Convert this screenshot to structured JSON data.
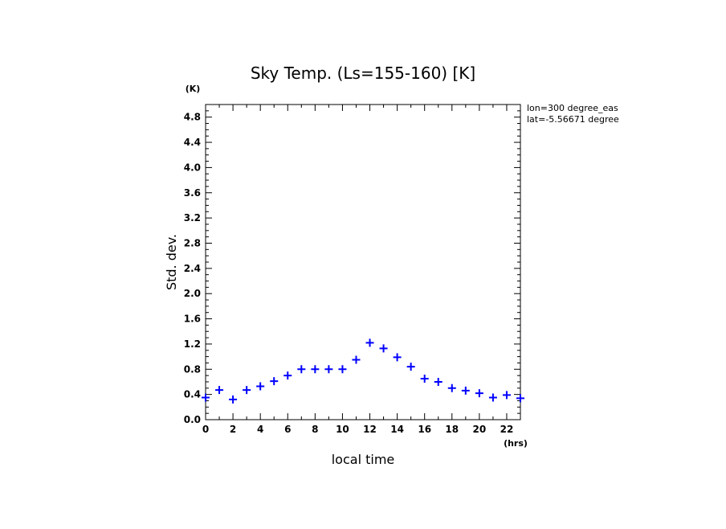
{
  "chart_data": {
    "type": "scatter",
    "title": "Sky Temp. (Ls=155-160) [K]",
    "xlabel": "local time",
    "ylabel": "Std. dev.",
    "x_unit": "(hrs)",
    "y_unit": "(K)",
    "xlim": [
      0,
      23
    ],
    "ylim": [
      0.0,
      5.0
    ],
    "x_ticks": [
      0,
      2,
      4,
      6,
      8,
      10,
      12,
      14,
      16,
      18,
      20,
      22
    ],
    "y_ticks": [
      0.0,
      0.4,
      0.8,
      1.2,
      1.6,
      2.0,
      2.4,
      2.8,
      3.2,
      3.6,
      4.0,
      4.4,
      4.8
    ],
    "y_tick_labels": [
      "0.0",
      "0.4",
      "0.8",
      "1.2",
      "1.6",
      "2.0",
      "2.4",
      "2.8",
      "3.2",
      "3.6",
      "4.0",
      "4.4",
      "4.8"
    ],
    "marker": "+",
    "marker_color": "#0000ff",
    "grid": false,
    "annotations": [
      "lon=300 degree_eas",
      "lat=-5.56671 degree"
    ],
    "series": [
      {
        "x": [
          0,
          1,
          2,
          3,
          4,
          5,
          6,
          7,
          8,
          9,
          10,
          11,
          12,
          13,
          14,
          15,
          16,
          17,
          18,
          19,
          20,
          21,
          22,
          23
        ],
        "values": [
          0.35,
          0.47,
          0.32,
          0.47,
          0.53,
          0.61,
          0.7,
          0.8,
          0.8,
          0.8,
          0.8,
          0.95,
          1.22,
          1.13,
          0.99,
          0.84,
          0.65,
          0.6,
          0.5,
          0.46,
          0.42,
          0.35,
          0.39,
          0.34
        ]
      }
    ]
  }
}
